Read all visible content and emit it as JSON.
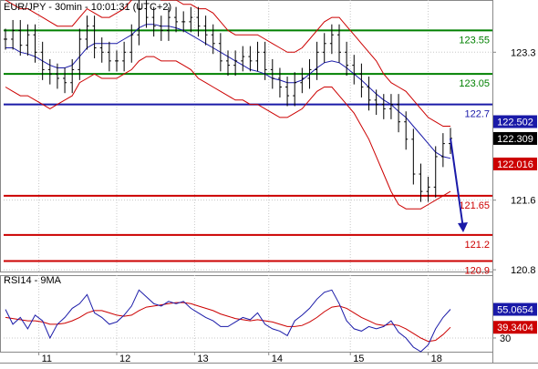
{
  "chart_data": [
    {
      "panel": "price",
      "type": "line",
      "title": "EUR/JPY - 30min - 10:01:31 (UTC+2)",
      "x_ticks": [
        "11",
        "12",
        "13",
        "14",
        "15",
        "18"
      ],
      "ylim": [
        120.78,
        123.9
      ],
      "y_ticks": [
        {
          "value": 123.3,
          "label": "123.3"
        },
        {
          "value": 121.6,
          "label": "121.6"
        },
        {
          "value": 120.8,
          "label": "120.8"
        }
      ],
      "levels": [
        {
          "value": 123.55,
          "label": "123.55",
          "color": "#008000"
        },
        {
          "value": 123.05,
          "label": "123.05",
          "color": "#008000"
        },
        {
          "value": 122.7,
          "label": "122.7",
          "color": "#1a1aa8"
        },
        {
          "value": 121.65,
          "label": "121.65",
          "color": "#cc0000"
        },
        {
          "value": 121.2,
          "label": "121.2",
          "color": "#cc0000"
        },
        {
          "value": 120.9,
          "label": "120.9",
          "color": "#cc0000"
        }
      ],
      "price_badges": [
        {
          "value": 122.502,
          "label": "122.502",
          "bg": "#1a1aa8",
          "fg": "#ffffff"
        },
        {
          "value": 122.309,
          "label": "122.309",
          "bg": "#000000",
          "fg": "#ffffff"
        },
        {
          "value": 122.016,
          "label": "122.016",
          "bg": "#cc0000",
          "fg": "#ffffff"
        }
      ],
      "close": [
        123.45,
        123.55,
        123.38,
        123.5,
        123.3,
        123.1,
        123.05,
        123.0,
        122.95,
        123.1,
        123.45,
        123.6,
        123.35,
        123.3,
        123.2,
        123.2,
        123.3,
        123.5,
        123.8,
        123.7,
        123.6,
        123.55,
        123.7,
        123.65,
        123.65,
        123.7,
        123.6,
        123.5,
        123.4,
        123.2,
        123.15,
        123.2,
        123.25,
        123.2,
        123.3,
        123.1,
        123.0,
        122.9,
        122.8,
        122.95,
        123.0,
        123.1,
        123.3,
        123.4,
        123.5,
        123.3,
        123.15,
        123.05,
        122.9,
        122.75,
        122.7,
        122.65,
        122.7,
        122.5,
        122.3,
        121.9,
        121.7,
        121.75,
        122.1,
        122.25,
        122.31
      ],
      "bb_upper": [
        123.9,
        123.85,
        123.8,
        123.8,
        123.75,
        123.7,
        123.65,
        123.6,
        123.6,
        123.6,
        123.7,
        123.8,
        123.75,
        123.7,
        123.7,
        123.75,
        123.8,
        123.9,
        124.0,
        124.0,
        123.95,
        123.9,
        123.9,
        123.9,
        123.85,
        123.85,
        123.8,
        123.8,
        123.75,
        123.65,
        123.55,
        123.5,
        123.5,
        123.5,
        123.5,
        123.45,
        123.4,
        123.35,
        123.3,
        123.3,
        123.35,
        123.45,
        123.55,
        123.65,
        123.7,
        123.7,
        123.6,
        123.5,
        123.4,
        123.3,
        123.2,
        123.05,
        122.95,
        122.9,
        122.85,
        122.75,
        122.65,
        122.55,
        122.5,
        122.45,
        122.45
      ],
      "bb_lower": [
        122.9,
        122.85,
        122.8,
        122.8,
        122.75,
        122.7,
        122.65,
        122.7,
        122.75,
        122.8,
        122.95,
        123.0,
        123.05,
        123.0,
        123.0,
        123.0,
        123.05,
        123.1,
        123.2,
        123.25,
        123.25,
        123.2,
        123.2,
        123.2,
        123.15,
        123.1,
        123.0,
        122.95,
        122.9,
        122.85,
        122.8,
        122.75,
        122.75,
        122.7,
        122.7,
        122.65,
        122.6,
        122.55,
        122.55,
        122.6,
        122.65,
        122.75,
        122.85,
        122.9,
        122.9,
        122.8,
        122.7,
        122.6,
        122.45,
        122.3,
        122.1,
        121.9,
        121.7,
        121.55,
        121.5,
        121.5,
        121.5,
        121.55,
        121.6,
        121.65,
        121.7
      ],
      "ma": [
        123.35,
        123.35,
        123.3,
        123.28,
        123.25,
        123.2,
        123.15,
        123.12,
        123.12,
        123.15,
        123.25,
        123.35,
        123.4,
        123.4,
        123.4,
        123.4,
        123.45,
        123.5,
        123.58,
        123.62,
        123.62,
        123.6,
        123.6,
        123.58,
        123.55,
        123.5,
        123.45,
        123.4,
        123.35,
        123.3,
        123.25,
        123.2,
        123.15,
        123.1,
        123.08,
        123.05,
        123.0,
        122.98,
        122.95,
        122.95,
        122.98,
        123.05,
        123.12,
        123.18,
        123.2,
        123.18,
        123.12,
        123.05,
        122.98,
        122.9,
        122.82,
        122.75,
        122.7,
        122.62,
        122.55,
        122.45,
        122.35,
        122.25,
        122.15,
        122.1,
        122.08
      ]
    },
    {
      "panel": "rsi",
      "type": "line",
      "title": "RSI14 - 9MA",
      "ylim": [
        18,
        85
      ],
      "y_ticks": [
        {
          "value": 30,
          "label": "30"
        }
      ],
      "badges": [
        {
          "value": 55.0654,
          "label": "55.0654",
          "bg": "#1a1aa8",
          "fg": "#ffffff"
        },
        {
          "value": 39.3404,
          "label": "39.3404",
          "bg": "#cc0000",
          "fg": "#ffffff"
        }
      ],
      "series": [
        {
          "values": [
            55,
            42,
            48,
            38,
            50,
            45,
            30,
            42,
            48,
            56,
            60,
            68,
            52,
            48,
            42,
            44,
            50,
            58,
            72,
            66,
            60,
            58,
            62,
            60,
            62,
            56,
            52,
            48,
            45,
            40,
            40,
            44,
            48,
            46,
            52,
            42,
            38,
            36,
            32,
            45,
            50,
            56,
            64,
            70,
            72,
            60,
            45,
            38,
            36,
            40,
            38,
            40,
            45,
            35,
            30,
            22,
            18,
            24,
            38,
            48,
            55.0654
          ]
        },
        {
          "values": [
            48,
            47,
            46,
            45,
            45,
            44,
            42,
            42,
            43,
            45,
            48,
            52,
            54,
            54,
            52,
            50,
            49,
            50,
            54,
            57,
            58,
            59,
            60,
            61,
            61,
            60,
            58,
            56,
            54,
            51,
            49,
            47,
            46,
            45,
            46,
            45,
            44,
            42,
            40,
            40,
            41,
            44,
            48,
            53,
            57,
            58,
            56,
            52,
            48,
            45,
            42,
            41,
            42,
            41,
            38,
            34,
            30,
            27,
            28,
            33,
            39.3404
          ]
        }
      ]
    }
  ]
}
